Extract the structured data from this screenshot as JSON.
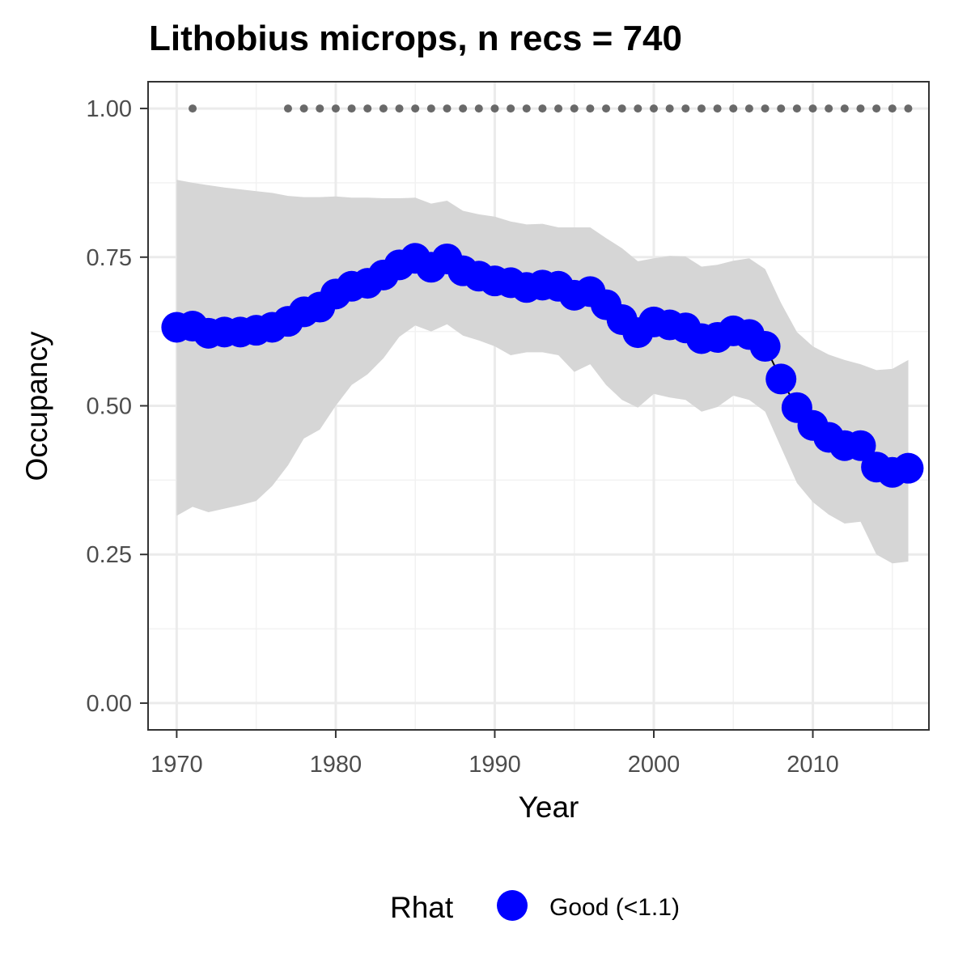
{
  "chart_data": {
    "type": "line",
    "title": "Lithobius microps, n recs = 740",
    "xlabel": "Year",
    "ylabel": "Occupancy",
    "xlim": [
      1968.2,
      2017.3
    ],
    "ylim": [
      -0.045,
      1.045
    ],
    "x_ticks": [
      1970,
      1980,
      1990,
      2000,
      2010
    ],
    "x_tick_labels": [
      "1970",
      "1980",
      "1990",
      "2000",
      "2010"
    ],
    "y_ticks": [
      0,
      0.25,
      0.5,
      0.75,
      1.0
    ],
    "y_tick_labels": [
      "0.00",
      "0.25",
      "0.50",
      "0.75",
      "1.00"
    ],
    "grid": true,
    "legend": {
      "position": "bottom",
      "title": "Rhat",
      "entries": [
        {
          "label": "Good (<1.1)",
          "color": "#0000ff"
        }
      ]
    },
    "series": [
      {
        "name": "Good (<1.1)",
        "color": "#0000ff",
        "x": [
          1970,
          1971,
          1972,
          1973,
          1974,
          1975,
          1976,
          1977,
          1978,
          1979,
          1980,
          1981,
          1982,
          1983,
          1984,
          1985,
          1986,
          1987,
          1988,
          1989,
          1990,
          1991,
          1992,
          1993,
          1994,
          1995,
          1996,
          1997,
          1998,
          1999,
          2000,
          2001,
          2002,
          2003,
          2004,
          2005,
          2006,
          2007,
          2008,
          2009,
          2010,
          2011,
          2012,
          2013,
          2014,
          2015,
          2016
        ],
        "y": [
          0.632,
          0.634,
          0.622,
          0.624,
          0.624,
          0.627,
          0.632,
          0.642,
          0.658,
          0.666,
          0.688,
          0.701,
          0.706,
          0.72,
          0.737,
          0.748,
          0.733,
          0.747,
          0.727,
          0.718,
          0.71,
          0.707,
          0.699,
          0.703,
          0.701,
          0.686,
          0.692,
          0.67,
          0.645,
          0.623,
          0.641,
          0.636,
          0.631,
          0.613,
          0.615,
          0.626,
          0.62,
          0.6,
          0.545,
          0.497,
          0.467,
          0.447,
          0.433,
          0.433,
          0.397,
          0.388,
          0.395
        ],
        "lower": [
          0.315,
          0.33,
          0.321,
          0.327,
          0.333,
          0.34,
          0.365,
          0.4,
          0.445,
          0.46,
          0.5,
          0.535,
          0.553,
          0.58,
          0.616,
          0.635,
          0.625,
          0.637,
          0.618,
          0.61,
          0.6,
          0.585,
          0.59,
          0.59,
          0.585,
          0.557,
          0.57,
          0.535,
          0.51,
          0.497,
          0.52,
          0.514,
          0.51,
          0.49,
          0.498,
          0.517,
          0.51,
          0.49,
          0.43,
          0.37,
          0.338,
          0.317,
          0.302,
          0.305,
          0.25,
          0.235,
          0.238
        ],
        "upper": [
          0.88,
          0.875,
          0.871,
          0.867,
          0.864,
          0.861,
          0.858,
          0.853,
          0.851,
          0.851,
          0.852,
          0.85,
          0.85,
          0.849,
          0.849,
          0.85,
          0.84,
          0.845,
          0.828,
          0.822,
          0.818,
          0.81,
          0.805,
          0.806,
          0.8,
          0.8,
          0.8,
          0.782,
          0.765,
          0.743,
          0.748,
          0.752,
          0.751,
          0.734,
          0.737,
          0.744,
          0.748,
          0.73,
          0.673,
          0.624,
          0.6,
          0.586,
          0.577,
          0.57,
          0.56,
          0.562,
          0.577
        ]
      }
    ],
    "reference_points": {
      "color": "#696969",
      "y": 1.0,
      "x": [
        1971,
        1977,
        1978,
        1979,
        1980,
        1981,
        1982,
        1983,
        1984,
        1985,
        1986,
        1987,
        1988,
        1989,
        1990,
        1991,
        1992,
        1993,
        1994,
        1995,
        1996,
        1997,
        1998,
        1999,
        2000,
        2001,
        2002,
        2003,
        2004,
        2005,
        2006,
        2007,
        2008,
        2009,
        2010,
        2011,
        2012,
        2013,
        2014,
        2015,
        2016
      ]
    },
    "ribbon_color": "#d6d6d6"
  }
}
